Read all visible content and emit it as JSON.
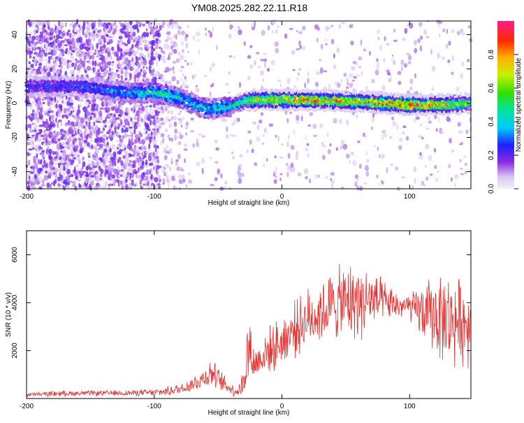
{
  "title": "YM08.2025.282.22.11.R18",
  "chart_data": [
    {
      "type": "heatmap",
      "title": "YM08.2025.282.22.11.R18",
      "xlabel": "Height of straight line (km)",
      "ylabel": "Frequency (Hz)",
      "xlim": [
        -200,
        148
      ],
      "ylim": [
        -50,
        48
      ],
      "x_ticks": [
        -200,
        -100,
        0,
        100
      ],
      "y_ticks": [
        -40,
        -20,
        0,
        20,
        40
      ],
      "x_tick_labels": [
        "-200",
        "-100",
        "0",
        "100"
      ],
      "y_tick_labels": [
        "-40",
        "-20",
        "0",
        "20",
        "40"
      ],
      "ridge": {
        "description": "dominant frequency track vs height",
        "x": [
          -200,
          -180,
          -160,
          -140,
          -120,
          -100,
          -90,
          -80,
          -70,
          -60,
          -50,
          -40,
          -30,
          -20,
          -10,
          0,
          20,
          40,
          60,
          80,
          100,
          120,
          148
        ],
        "freq": [
          10,
          10,
          10,
          8,
          6,
          6,
          5,
          3,
          0,
          -3,
          -3,
          -2,
          1,
          2,
          2,
          2,
          2,
          1.5,
          1,
          0,
          -1,
          -1,
          0
        ],
        "amplitude": [
          0.25,
          0.3,
          0.3,
          0.35,
          0.4,
          0.5,
          0.5,
          0.45,
          0.4,
          0.45,
          0.45,
          0.5,
          0.6,
          0.75,
          0.8,
          0.85,
          0.9,
          0.85,
          0.8,
          0.9,
          0.95,
          0.85,
          0.6
        ]
      },
      "colorbar": {
        "label": "Normalized spectral amplitude",
        "range": [
          0,
          1
        ],
        "ticks": [
          0.0,
          0.2,
          0.4,
          0.6,
          0.8
        ],
        "tick_labels": [
          "0.0",
          "0.2",
          "0.4",
          "0.6",
          "0.8"
        ]
      }
    },
    {
      "type": "line",
      "xlabel": "Height of straight line (km)",
      "ylabel": "SNR (10 * v/v)",
      "xlim": [
        -200,
        148
      ],
      "ylim": [
        0,
        7000
      ],
      "x_ticks": [
        -200,
        -100,
        0,
        100
      ],
      "y_ticks": [
        2000,
        4000,
        6000
      ],
      "x_tick_labels": [
        "-200",
        "-100",
        "0",
        "100"
      ],
      "y_tick_labels": [
        "2000",
        "4000",
        "6000"
      ],
      "series": [
        {
          "name": "SNR",
          "color": "#e8302f",
          "x": [
            -200,
            -180,
            -160,
            -140,
            -120,
            -100,
            -90,
            -80,
            -70,
            -60,
            -55,
            -50,
            -45,
            -40,
            -35,
            -30,
            -28,
            -26,
            -24,
            -22,
            -20,
            -15,
            -10,
            -5,
            0,
            10,
            20,
            30,
            40,
            50,
            60,
            70,
            80,
            90,
            100,
            110,
            120,
            130,
            140,
            148
          ],
          "center": [
            150,
            200,
            220,
            220,
            230,
            250,
            300,
            400,
            600,
            900,
            1100,
            800,
            600,
            400,
            300,
            600,
            1500,
            2200,
            1900,
            1400,
            1500,
            1800,
            2000,
            2200,
            2400,
            2900,
            3300,
            3600,
            3900,
            4000,
            4100,
            4100,
            4000,
            3900,
            3800,
            3600,
            3500,
            3300,
            3200,
            3200
          ],
          "spread": [
            100,
            120,
            120,
            120,
            130,
            150,
            200,
            250,
            350,
            500,
            600,
            500,
            400,
            300,
            250,
            700,
            1400,
            1700,
            1200,
            900,
            800,
            900,
            1000,
            1000,
            1100,
            1200,
            1300,
            1400,
            1500,
            1700,
            1700,
            1400,
            900,
            600,
            600,
            1200,
            1800,
            2000,
            1900,
            1800
          ]
        }
      ]
    }
  ]
}
